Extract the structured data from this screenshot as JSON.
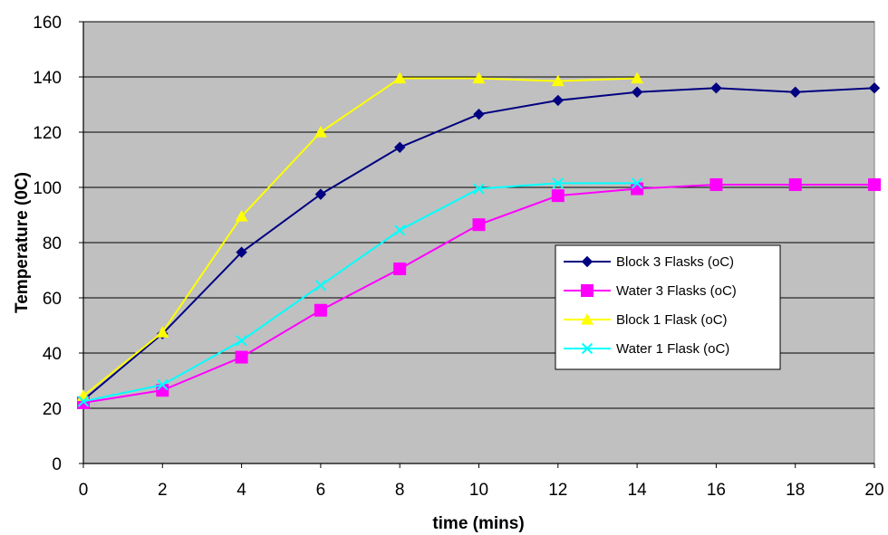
{
  "chart_data": {
    "type": "line",
    "title": "",
    "xlabel": "time (mins)",
    "ylabel": "Temperature (0C)",
    "xlim": [
      0,
      20
    ],
    "ylim": [
      0,
      160
    ],
    "x_ticks": [
      "0",
      "2",
      "4",
      "6",
      "8",
      "10",
      "12",
      "14",
      "16",
      "18",
      "20"
    ],
    "y_ticks": [
      "0",
      "20",
      "40",
      "60",
      "80",
      "100",
      "120",
      "140",
      "160"
    ],
    "grid": "horizontal",
    "plot_background": "#c0c0c0",
    "legend_position": "right-middle",
    "series": [
      {
        "name": "Block 3 Flasks (oC)",
        "color": "#000080",
        "marker": "diamond",
        "x": [
          0,
          2,
          4,
          6,
          8,
          10,
          12,
          14,
          16,
          18,
          20
        ],
        "y": [
          23,
          47,
          76.5,
          97.5,
          114.5,
          126.5,
          131.5,
          134.5,
          136,
          134.5,
          136
        ]
      },
      {
        "name": "Water 3 Flasks (oC)",
        "color": "#ff00ff",
        "marker": "square",
        "x": [
          0,
          2,
          4,
          6,
          8,
          10,
          12,
          14,
          16,
          18,
          20
        ],
        "y": [
          22,
          26.5,
          38.5,
          55.5,
          70.5,
          86.5,
          97,
          99.5,
          101,
          101,
          101
        ]
      },
      {
        "name": "Block 1 Flask (oC)",
        "color": "#ffff00",
        "marker": "triangle",
        "x": [
          0,
          2,
          4,
          6,
          8,
          10,
          12,
          14
        ],
        "y": [
          24.5,
          47.5,
          89.5,
          120,
          139.5,
          139.5,
          138.5,
          139.5
        ]
      },
      {
        "name": "Water 1 Flask (oC)",
        "color": "#00ffff",
        "marker": "x",
        "x": [
          0,
          2,
          4,
          6,
          8,
          10,
          12,
          14
        ],
        "y": [
          22.5,
          28.5,
          44.5,
          64.5,
          84.5,
          99.5,
          101.5,
          101.5
        ]
      }
    ]
  }
}
